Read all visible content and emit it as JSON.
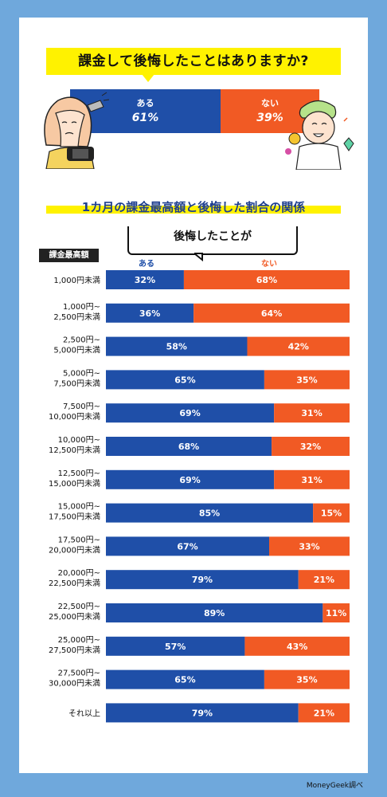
{
  "summary": {
    "question": "課金して後悔したことはありますか?",
    "aru_label": "ある",
    "aru_value": "61%",
    "nai_label": "ない",
    "nai_value": "39%",
    "aru_pct": 61,
    "nai_pct": 39
  },
  "chart_title": "1カ月の課金最高額と後悔した割合の関係",
  "bubble_text": "後悔したことが",
  "column_header": "課金最高額",
  "credit": "MoneyGeek調べ",
  "colors": {
    "aru": "#1f4fa8",
    "nai": "#f15a24",
    "highlight": "#fff200",
    "background": "#6fa8dc"
  },
  "chart_data": {
    "type": "bar",
    "stacked": true,
    "orientation": "horizontal",
    "categories": [
      [
        "1,000円未満"
      ],
      [
        "1,000円~",
        "2,500円未満"
      ],
      [
        "2,500円~",
        "5,000円未満"
      ],
      [
        "5,000円~",
        "7,500円未満"
      ],
      [
        "7,500円~",
        "10,000円未満"
      ],
      [
        "10,000円~",
        "12,500円未満"
      ],
      [
        "12,500円~",
        "15,000円未満"
      ],
      [
        "15,000円~",
        "17,500円未満"
      ],
      [
        "17,500円~",
        "20,000円未満"
      ],
      [
        "20,000円~",
        "22,500円未満"
      ],
      [
        "22,500円~",
        "25,000円未満"
      ],
      [
        "25,000円~",
        "27,500円未満"
      ],
      [
        "27,500円~",
        "30,000円未満"
      ],
      [
        "それ以上"
      ]
    ],
    "series": [
      {
        "name": "ある",
        "values": [
          32,
          36,
          58,
          65,
          69,
          68,
          69,
          85,
          67,
          79,
          89,
          57,
          65,
          79
        ]
      },
      {
        "name": "ない",
        "values": [
          68,
          64,
          42,
          35,
          31,
          32,
          31,
          15,
          33,
          21,
          11,
          43,
          35,
          21
        ]
      }
    ],
    "unit": "%",
    "xlim": [
      0,
      100
    ]
  }
}
